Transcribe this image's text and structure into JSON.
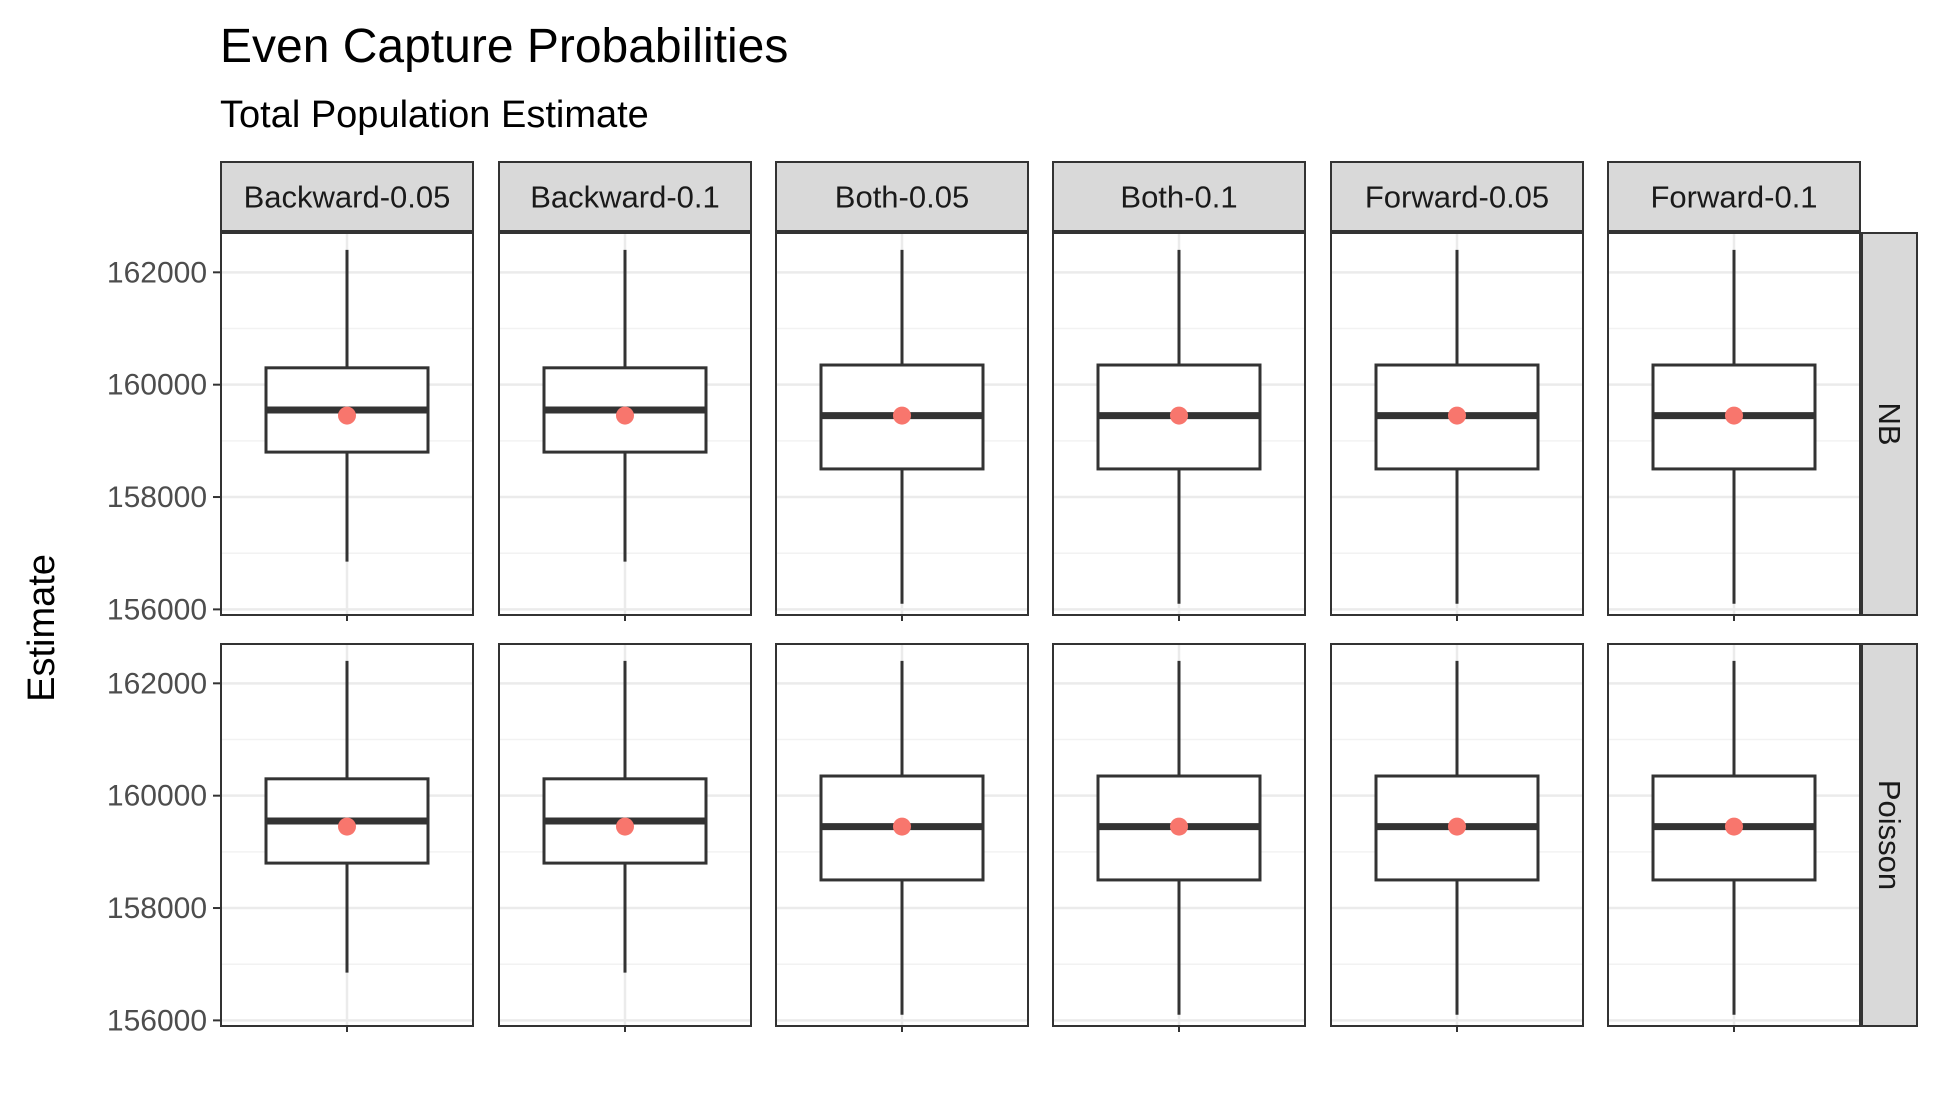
{
  "chart_data": {
    "type": "boxplot",
    "title": "Even Capture Probabilities",
    "subtitle": "Total Population Estimate",
    "ylabel": "Estimate",
    "xlabel": "",
    "ylim": [
      155900,
      162700
    ],
    "yticks": [
      156000,
      158000,
      160000,
      162000
    ],
    "grid": true,
    "columns": [
      "Backward-0.05",
      "Backward-0.1",
      "Both-0.05",
      "Both-0.1",
      "Forward-0.05",
      "Forward-0.1"
    ],
    "rows": [
      "NB",
      "Poisson"
    ],
    "mean_point_color": "#F8766D",
    "box_color": "#333333",
    "panels": [
      {
        "row": "NB",
        "column": "Backward-0.05",
        "min": 156850,
        "q1": 158800,
        "median": 159550,
        "q3": 160300,
        "max": 162400,
        "mean": 159450
      },
      {
        "row": "NB",
        "column": "Backward-0.1",
        "min": 156850,
        "q1": 158800,
        "median": 159550,
        "q3": 160300,
        "max": 162400,
        "mean": 159450
      },
      {
        "row": "NB",
        "column": "Both-0.05",
        "min": 156100,
        "q1": 158500,
        "median": 159450,
        "q3": 160350,
        "max": 162400,
        "mean": 159450
      },
      {
        "row": "NB",
        "column": "Both-0.1",
        "min": 156100,
        "q1": 158500,
        "median": 159450,
        "q3": 160350,
        "max": 162400,
        "mean": 159450
      },
      {
        "row": "NB",
        "column": "Forward-0.05",
        "min": 156100,
        "q1": 158500,
        "median": 159450,
        "q3": 160350,
        "max": 162400,
        "mean": 159450
      },
      {
        "row": "NB",
        "column": "Forward-0.1",
        "min": 156100,
        "q1": 158500,
        "median": 159450,
        "q3": 160350,
        "max": 162400,
        "mean": 159450
      },
      {
        "row": "Poisson",
        "column": "Backward-0.05",
        "min": 156850,
        "q1": 158800,
        "median": 159550,
        "q3": 160300,
        "max": 162400,
        "mean": 159450
      },
      {
        "row": "Poisson",
        "column": "Backward-0.1",
        "min": 156850,
        "q1": 158800,
        "median": 159550,
        "q3": 160300,
        "max": 162400,
        "mean": 159450
      },
      {
        "row": "Poisson",
        "column": "Both-0.05",
        "min": 156100,
        "q1": 158500,
        "median": 159450,
        "q3": 160350,
        "max": 162400,
        "mean": 159450
      },
      {
        "row": "Poisson",
        "column": "Both-0.1",
        "min": 156100,
        "q1": 158500,
        "median": 159450,
        "q3": 160350,
        "max": 162400,
        "mean": 159450
      },
      {
        "row": "Poisson",
        "column": "Forward-0.05",
        "min": 156100,
        "q1": 158500,
        "median": 159450,
        "q3": 160350,
        "max": 162400,
        "mean": 159450
      },
      {
        "row": "Poisson",
        "column": "Forward-0.1",
        "min": 156100,
        "q1": 158500,
        "median": 159450,
        "q3": 160350,
        "max": 162400,
        "mean": 159450
      }
    ]
  }
}
